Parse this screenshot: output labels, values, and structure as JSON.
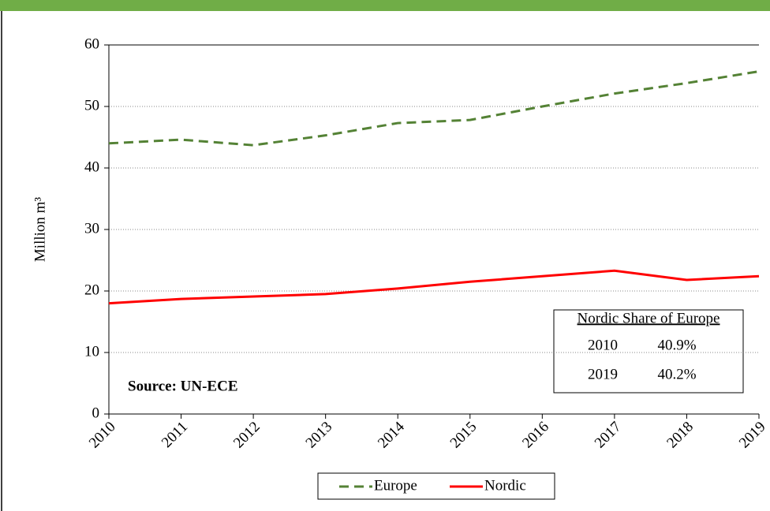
{
  "chart_data": {
    "type": "line",
    "y_axis_label": "Million m³",
    "categories": [
      "2010",
      "2011",
      "2012",
      "2013",
      "2014",
      "2015",
      "2016",
      "2017",
      "2018",
      "2019"
    ],
    "series": [
      {
        "name": "Europe",
        "color": "#548235",
        "style": "dashed",
        "values": [
          44.0,
          44.6,
          43.7,
          45.3,
          47.3,
          47.8,
          50.0,
          52.1,
          53.8,
          55.7
        ]
      },
      {
        "name": "Nordic",
        "color": "#ff0000",
        "style": "solid",
        "values": [
          18.0,
          18.7,
          19.1,
          19.5,
          20.4,
          21.5,
          22.4,
          23.3,
          21.8,
          22.4
        ]
      }
    ],
    "ylim": [
      0,
      60
    ],
    "yticks": [
      0,
      10,
      20,
      30,
      40,
      50,
      60
    ],
    "grid": true,
    "source": "Source: UN-ECE",
    "share_table": {
      "title": "Nordic Share of Europe",
      "rows": [
        [
          "2010",
          "40.9%"
        ],
        [
          "2019",
          "40.2%"
        ]
      ]
    }
  }
}
